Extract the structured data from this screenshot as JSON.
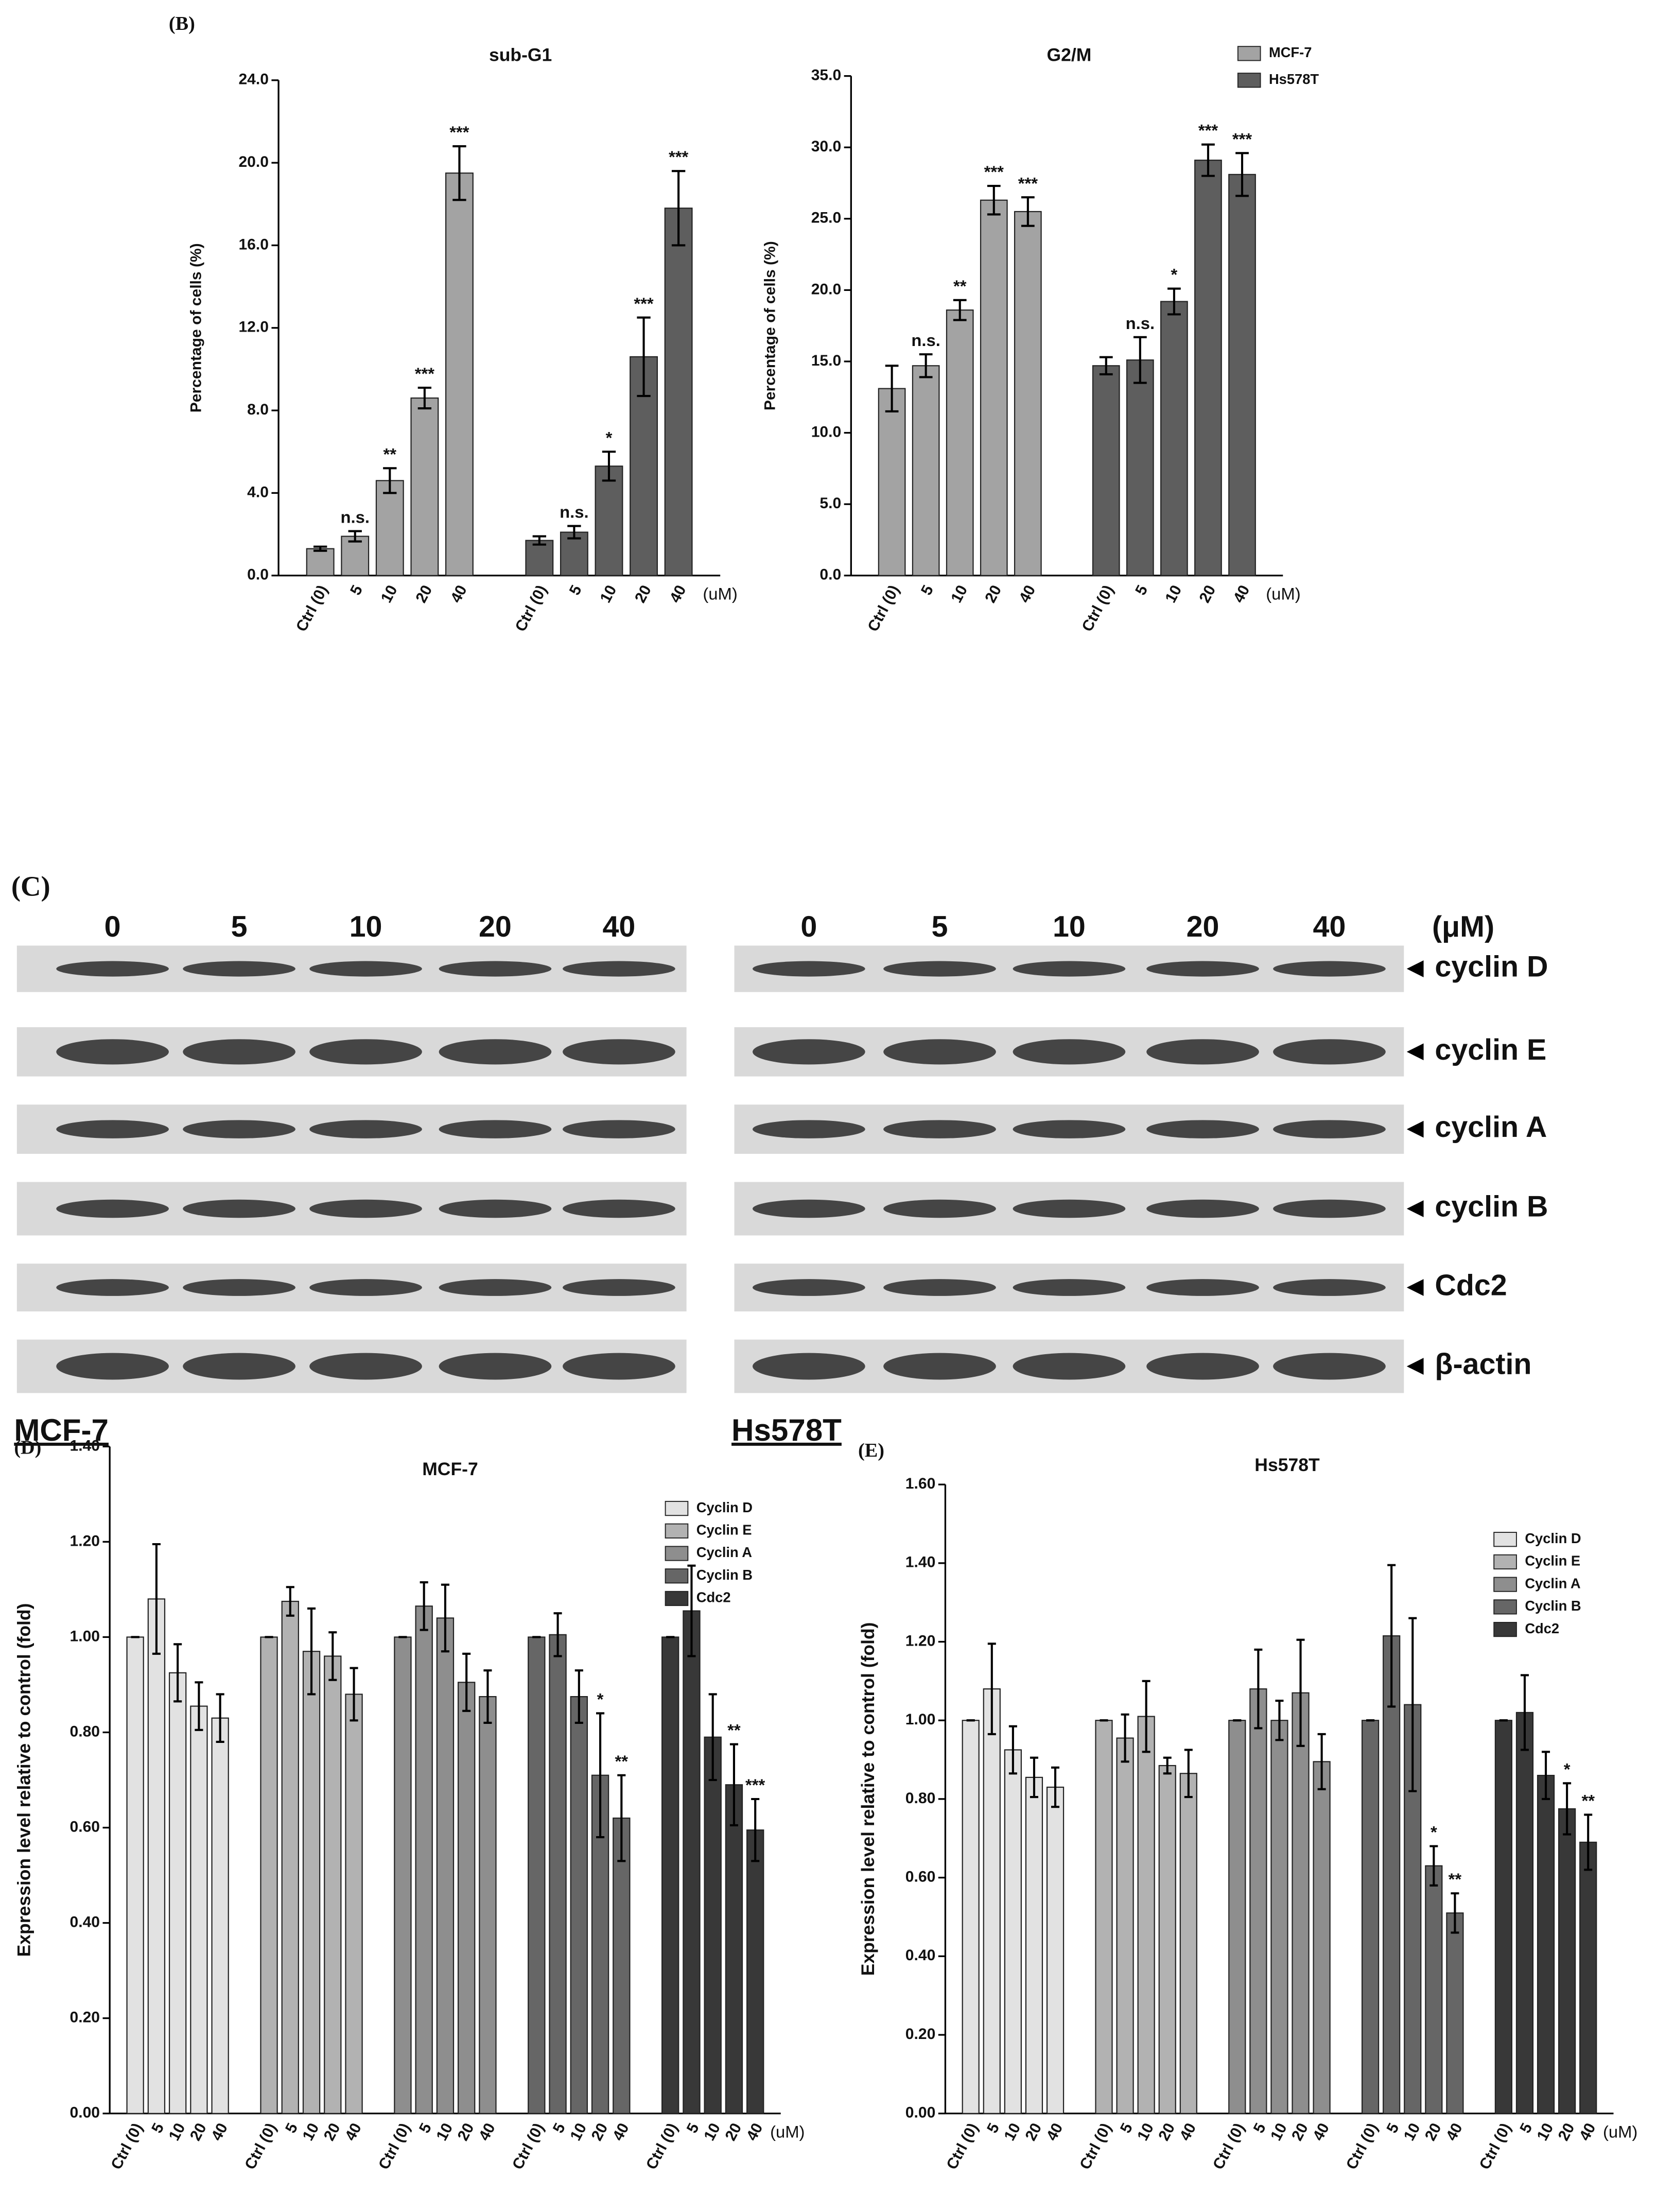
{
  "chart_data": [
    {
      "type": "bar",
      "panel": "(B)",
      "title": "sub-G1",
      "ylabel": "Percentage of cells (%)",
      "xlabel": "(uM)",
      "categories": [
        "Ctrl (0)",
        "5",
        "10",
        "20",
        "40"
      ],
      "series": [
        {
          "color": "#a3a3a3",
          "values": [
            1.3,
            1.9,
            4.6,
            8.6,
            19.5
          ],
          "errors": [
            0.1,
            0.25,
            0.6,
            0.5,
            1.3
          ],
          "annotations": [
            null,
            "n.s.",
            "**",
            "***",
            "***"
          ]
        },
        {
          "color": "#5e5e5e",
          "values": [
            1.7,
            2.1,
            5.3,
            10.6,
            17.8
          ],
          "errors": [
            0.2,
            0.3,
            0.7,
            1.9,
            1.8
          ],
          "annotations": [
            null,
            "n.s.",
            "*",
            "***",
            "***"
          ]
        }
      ],
      "ylim": [
        0,
        24
      ],
      "yticks": [
        {
          "value": 0,
          "label": "0.0"
        },
        {
          "value": 4,
          "label": "4.0"
        },
        {
          "value": 8,
          "label": "8.0"
        },
        {
          "value": 12,
          "label": "12.0"
        },
        {
          "value": 16,
          "label": "16.0"
        },
        {
          "value": 20,
          "label": "20.0"
        },
        {
          "value": 24,
          "label": "24.0"
        }
      ]
    },
    {
      "type": "bar",
      "title": "G2/M",
      "ylabel": "Percentage of cells (%)",
      "xlabel": "(uM)",
      "categories": [
        "Ctrl (0)",
        "5",
        "10",
        "20",
        "40"
      ],
      "series": [
        {
          "name": "MCF-7",
          "color": "#a3a3a3",
          "values": [
            13.1,
            14.7,
            18.6,
            26.3,
            25.5
          ],
          "errors": [
            1.6,
            0.8,
            0.7,
            1.0,
            1.0
          ],
          "annotations": [
            null,
            "n.s.",
            "**",
            "***",
            "***"
          ]
        },
        {
          "name": "Hs578T",
          "color": "#5e5e5e",
          "values": [
            14.7,
            15.1,
            19.2,
            29.1,
            28.1
          ],
          "errors": [
            0.6,
            1.6,
            0.9,
            1.1,
            1.5
          ],
          "annotations": [
            null,
            "n.s.",
            "*",
            "***",
            "***"
          ]
        }
      ],
      "ylim": [
        0,
        35
      ],
      "yticks": [
        {
          "value": 0,
          "label": "0.0"
        },
        {
          "value": 5,
          "label": "5.0"
        },
        {
          "value": 10,
          "label": "10.0"
        },
        {
          "value": 15,
          "label": "15.0"
        },
        {
          "value": 20,
          "label": "20.0"
        },
        {
          "value": 25,
          "label": "25.0"
        },
        {
          "value": 30,
          "label": "30.0"
        },
        {
          "value": 35,
          "label": "35.0"
        }
      ]
    },
    {
      "type": "bar",
      "panel": "(D)",
      "title": "MCF-7",
      "ylabel": "Expression level relative to control (fold)",
      "xlabel": "(uM)",
      "categories": [
        "Ctrl (0)",
        "5",
        "10",
        "20",
        "40"
      ],
      "series": [
        {
          "name": "Cyclin D",
          "color": "#e2e2e2",
          "values": [
            1.0,
            1.08,
            0.925,
            0.855,
            0.83
          ],
          "errors": [
            0,
            0.115,
            0.06,
            0.05,
            0.05
          ],
          "annotations": [
            null,
            null,
            null,
            null,
            null
          ]
        },
        {
          "name": "Cyclin E",
          "color": "#b2b2b2",
          "values": [
            1.0,
            1.075,
            0.97,
            0.96,
            0.88
          ],
          "errors": [
            0,
            0.03,
            0.09,
            0.05,
            0.055
          ],
          "annotations": [
            null,
            null,
            null,
            null,
            null
          ]
        },
        {
          "name": "Cyclin A",
          "color": "#8e8e8e",
          "values": [
            1.0,
            1.065,
            1.04,
            0.905,
            0.875
          ],
          "errors": [
            0,
            0.05,
            0.07,
            0.06,
            0.055
          ],
          "annotations": [
            null,
            null,
            null,
            null,
            null
          ]
        },
        {
          "name": "Cyclin B",
          "color": "#666666",
          "values": [
            1.0,
            1.005,
            0.875,
            0.71,
            0.62
          ],
          "errors": [
            0,
            0.045,
            0.055,
            0.13,
            0.09
          ],
          "annotations": [
            null,
            null,
            null,
            "*",
            "**"
          ]
        },
        {
          "name": "Cdc2",
          "color": "#383838",
          "values": [
            1.0,
            1.055,
            0.79,
            0.69,
            0.595
          ],
          "errors": [
            0,
            0.095,
            0.09,
            0.085,
            0.065
          ],
          "annotations": [
            null,
            null,
            null,
            "**",
            "***"
          ]
        }
      ],
      "ylim": [
        0,
        1.4
      ],
      "yticks": [
        {
          "value": 0,
          "label": "0.00"
        },
        {
          "value": 0.2,
          "label": "0.20"
        },
        {
          "value": 0.4,
          "label": "0.40"
        },
        {
          "value": 0.6,
          "label": "0.60"
        },
        {
          "value": 0.8,
          "label": "0.80"
        },
        {
          "value": 1.0,
          "label": "1.00"
        },
        {
          "value": 1.2,
          "label": "1.20"
        },
        {
          "value": 1.4,
          "label": "1.40"
        }
      ]
    },
    {
      "type": "bar",
      "panel": "(E)",
      "title": "Hs578T",
      "ylabel": "Expression level relative to control (fold)",
      "xlabel": "(uM)",
      "categories": [
        "Ctrl (0)",
        "5",
        "10",
        "20",
        "40"
      ],
      "series": [
        {
          "name": "Cyclin D",
          "color": "#e2e2e2",
          "values": [
            1.0,
            1.08,
            0.925,
            0.855,
            0.83
          ],
          "errors": [
            0,
            0.115,
            0.06,
            0.05,
            0.05
          ],
          "annotations": [
            null,
            null,
            null,
            null,
            null
          ]
        },
        {
          "name": "Cyclin E",
          "color": "#b2b2b2",
          "values": [
            1.0,
            0.955,
            1.01,
            0.885,
            0.865
          ],
          "errors": [
            0,
            0.06,
            0.09,
            0.02,
            0.06
          ],
          "annotations": [
            null,
            null,
            null,
            null,
            null
          ]
        },
        {
          "name": "Cyclin A",
          "color": "#8e8e8e",
          "values": [
            1.0,
            1.08,
            1.0,
            1.07,
            0.895
          ],
          "errors": [
            0,
            0.1,
            0.05,
            0.135,
            0.07
          ],
          "annotations": [
            null,
            null,
            null,
            null,
            null
          ]
        },
        {
          "name": "Cyclin B",
          "color": "#666666",
          "values": [
            1.0,
            1.215,
            1.04,
            0.63,
            0.51
          ],
          "errors": [
            0,
            0.18,
            0.22,
            0.05,
            0.05
          ],
          "annotations": [
            null,
            null,
            null,
            "*",
            "**"
          ]
        },
        {
          "name": "Cdc2",
          "color": "#383838",
          "values": [
            1.0,
            1.02,
            0.86,
            0.775,
            0.69
          ],
          "errors": [
            0,
            0.095,
            0.06,
            0.065,
            0.07
          ],
          "annotations": [
            null,
            null,
            null,
            "*",
            "**"
          ]
        }
      ],
      "ylim": [
        0,
        1.6
      ],
      "yticks": [
        {
          "value": 0,
          "label": "0.00"
        },
        {
          "value": 0.2,
          "label": "0.20"
        },
        {
          "value": 0.4,
          "label": "0.40"
        },
        {
          "value": 0.6,
          "label": "0.60"
        },
        {
          "value": 0.8,
          "label": "0.80"
        },
        {
          "value": 1.0,
          "label": "1.00"
        },
        {
          "value": 1.2,
          "label": "1.20"
        },
        {
          "value": 1.4,
          "label": "1.40"
        },
        {
          "value": 1.6,
          "label": "1.60"
        }
      ]
    }
  ],
  "blot": {
    "panel": "(C)",
    "lanes": [
      "0",
      "5",
      "10",
      "20",
      "40"
    ],
    "unit": "(μM)",
    "proteins": [
      "cyclin D",
      "cyclin E",
      "cyclin A",
      "cyclin B",
      "Cdc2",
      "β-actin"
    ],
    "cell_lines": [
      "MCF-7",
      "Hs578T"
    ]
  }
}
